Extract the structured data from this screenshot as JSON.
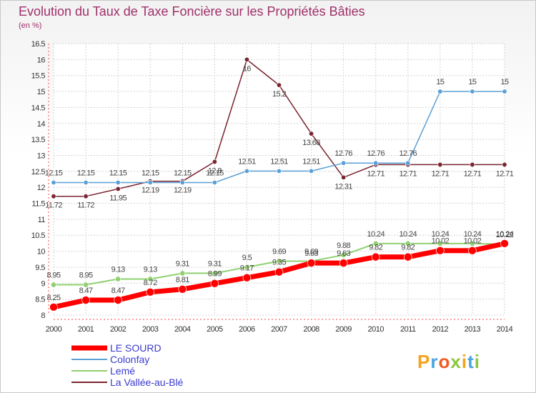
{
  "chart_data": {
    "type": "line",
    "title": "Evolution du Taux de Taxe Foncière sur les Propriétés Bâties",
    "subtitle": "(en %)",
    "x": [
      "2000",
      "2001",
      "2002",
      "2003",
      "2004",
      "2005",
      "2006",
      "2007",
      "2008",
      "2009",
      "2010",
      "2011",
      "2012",
      "2013",
      "2014"
    ],
    "ylim": [
      8,
      16.5
    ],
    "yticks": [
      "8",
      "8.5",
      "9",
      "9.5",
      "10",
      "10.5",
      "11",
      "11.5",
      "12",
      "12.5",
      "13",
      "13.5",
      "14",
      "14.5",
      "15",
      "15.5",
      "16",
      "16.5"
    ],
    "series": [
      {
        "name": "LE SOURD",
        "color": "#ff0000",
        "values": [
          8.25,
          8.47,
          8.47,
          8.72,
          8.81,
          8.99,
          9.17,
          9.35,
          9.63,
          9.63,
          9.82,
          9.82,
          10.02,
          10.02,
          10.24
        ]
      },
      {
        "name": "Colonfay",
        "color": "#5aa0d6",
        "values": [
          12.15,
          12.15,
          12.15,
          12.15,
          12.15,
          12.15,
          12.51,
          12.51,
          12.51,
          12.76,
          12.76,
          12.76,
          15,
          15,
          15
        ]
      },
      {
        "name": "Lemé",
        "color": "#90d070",
        "values": [
          8.95,
          8.95,
          9.13,
          9.13,
          9.31,
          9.31,
          9.5,
          9.69,
          9.69,
          9.88,
          10.24,
          10.24,
          10.24,
          10.24,
          10.22
        ]
      },
      {
        "name": "La Vallée-au-Blé",
        "color": "#7a2430",
        "values": [
          11.72,
          11.72,
          11.95,
          12.19,
          12.19,
          12.8,
          16,
          15.2,
          13.68,
          12.31,
          12.71,
          12.71,
          12.71,
          12.71,
          12.71
        ]
      }
    ],
    "data_labels": {
      "LE SOURD": [
        "8.25",
        "8.47",
        "8.47",
        "8.72",
        "8.81",
        "8.99",
        "9.17",
        "9.35",
        "9.63",
        "9.63",
        "9.82",
        "9.82",
        "10.02",
        "10.02",
        "10.24"
      ],
      "Colonfay": [
        "12.15",
        "12.15",
        "12.15",
        "12.15",
        "12.15",
        "12.15",
        "12.51",
        "12.51",
        "12.51",
        "12.76",
        "12.76",
        "12.76",
        "15",
        "15",
        "15"
      ],
      "Lemé": [
        "8.95",
        "8.95",
        "9.13",
        "9.13",
        "9.31",
        "9.31",
        "9.5",
        "9.69",
        "9.69",
        "9.88",
        "10.24",
        "10.24",
        "10.24",
        "10.24",
        "10.22"
      ],
      "La Vallée-au-Blé": [
        "11.72",
        "11.72",
        "11.95",
        "12.19",
        "12.19",
        "12.8",
        "16",
        "15.2",
        "13.68",
        "12.31",
        "12.71",
        "12.71",
        "12.71",
        "12.71",
        "12.71"
      ]
    },
    "legend": [
      "LE SOURD",
      "Colonfay",
      "Lemé",
      "La Vallée-au-Blé"
    ],
    "grid": true,
    "legend_position": "bottom-left"
  },
  "brand": {
    "text": "Proxiti",
    "letters": [
      "P",
      "r",
      "o",
      "x",
      "i",
      "t",
      "i"
    ],
    "colors": [
      "#f7a21b",
      "#4aa3df",
      "#f15a24",
      "#8cc63f",
      "#f7a21b",
      "#4aa3df",
      "#8cc63f"
    ]
  }
}
